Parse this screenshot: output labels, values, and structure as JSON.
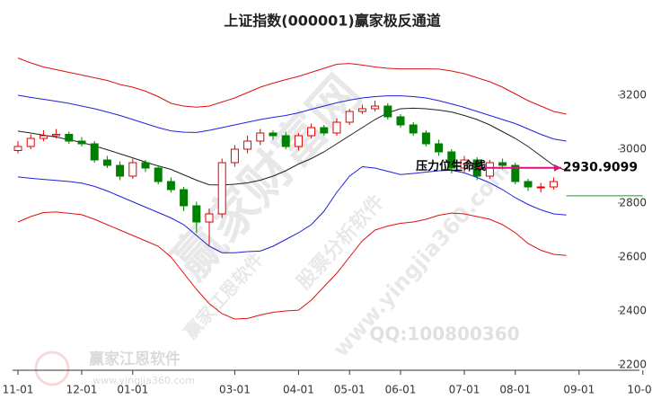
{
  "chart_data": {
    "type": "candlestick",
    "title": "上证指数(000001)赢家极反通道",
    "categories": [
      "11-01",
      null,
      null,
      null,
      null,
      "12-01",
      null,
      null,
      null,
      "01-01",
      null,
      null,
      null,
      null,
      null,
      null,
      null,
      "03-01",
      null,
      null,
      null,
      null,
      "04-01",
      null,
      null,
      null,
      "05-01",
      null,
      null,
      null,
      "06-01",
      null,
      null,
      null,
      null,
      "07-01",
      null,
      null,
      null,
      "08-01",
      null,
      null,
      null,
      null,
      "09-01",
      null,
      null,
      null,
      null,
      "10-01"
    ],
    "ylim": [
      2180,
      3420
    ],
    "yticks": [
      2200,
      2400,
      2600,
      2800,
      3000,
      3200
    ],
    "candles": {
      "up_color": "#e00000",
      "down_color": "#008000",
      "open": [
        2995,
        3010,
        3040,
        3050,
        3055,
        3030,
        3020,
        2960,
        2940,
        2900,
        2950,
        2930,
        2880,
        2850,
        2790,
        2730,
        2760,
        2950,
        3000,
        3030,
        3060,
        3050,
        3010,
        3050,
        3080,
        3060,
        3100,
        3140,
        3150,
        3160,
        3120,
        3090,
        3060,
        3020,
        2990,
        2930,
        2960,
        2900,
        2950,
        2940,
        2880,
        2860,
        2860
      ],
      "high": [
        3030,
        3055,
        3070,
        3075,
        3065,
        3045,
        3030,
        2975,
        2955,
        2965,
        2960,
        2940,
        2895,
        2860,
        2805,
        2780,
        2965,
        3015,
        3050,
        3075,
        3070,
        3065,
        3060,
        3095,
        3090,
        3115,
        3150,
        3165,
        3180,
        3170,
        3130,
        3100,
        3070,
        3035,
        3000,
        2975,
        2970,
        2960,
        2965,
        2950,
        2890,
        2875,
        2895
      ],
      "low": [
        2985,
        3000,
        3030,
        3040,
        3020,
        3010,
        2950,
        2930,
        2885,
        2890,
        2915,
        2870,
        2840,
        2770,
        2690,
        2640,
        2745,
        2935,
        2985,
        3015,
        3035,
        3000,
        2995,
        3040,
        3050,
        3050,
        3090,
        3130,
        3140,
        3110,
        3080,
        3050,
        3010,
        2975,
        2910,
        2915,
        2885,
        2890,
        2925,
        2870,
        2845,
        2840,
        2850
      ],
      "close": [
        3010,
        3040,
        3050,
        3055,
        3030,
        3020,
        2960,
        2940,
        2900,
        2950,
        2930,
        2880,
        2850,
        2790,
        2730,
        2760,
        2950,
        3000,
        3030,
        3060,
        3050,
        3010,
        3050,
        3080,
        3060,
        3100,
        3140,
        3150,
        3160,
        3120,
        3090,
        3060,
        3020,
        2990,
        2930,
        2960,
        2900,
        2950,
        2940,
        2880,
        2860,
        2860,
        2880
      ]
    },
    "series": [
      {
        "color": "#e01010",
        "values": [
          3338,
          3320,
          3305,
          3295,
          3285,
          3275,
          3265,
          3255,
          3240,
          3230,
          3215,
          3195,
          3170,
          3160,
          3156,
          3160,
          3175,
          3190,
          3210,
          3230,
          3245,
          3258,
          3270,
          3285,
          3300,
          3315,
          3318,
          3312,
          3305,
          3300,
          3298,
          3298,
          3298,
          3297,
          3290,
          3280,
          3265,
          3250,
          3230,
          3205,
          3180,
          3160,
          3140,
          3130,
          null,
          null,
          null,
          null,
          null,
          null
        ]
      },
      {
        "color": "#2020e0",
        "values": [
          3200,
          3192,
          3185,
          3178,
          3170,
          3160,
          3150,
          3138,
          3125,
          3110,
          3095,
          3080,
          3068,
          3063,
          3062,
          3070,
          3080,
          3090,
          3100,
          3110,
          3118,
          3125,
          3135,
          3148,
          3160,
          3172,
          3182,
          3190,
          3195,
          3198,
          3198,
          3195,
          3190,
          3180,
          3168,
          3155,
          3140,
          3125,
          3110,
          3095,
          3075,
          3055,
          3038,
          3030,
          null,
          null,
          null,
          null,
          null,
          null
        ]
      },
      {
        "color": "#202020",
        "values": [
          3067,
          3060,
          3052,
          3045,
          3035,
          3025,
          3012,
          2998,
          2983,
          2968,
          2952,
          2938,
          2925,
          2905,
          2885,
          2868,
          2867,
          2870,
          2875,
          2885,
          2900,
          2920,
          2945,
          2965,
          2990,
          3020,
          3050,
          3080,
          3110,
          3135,
          3150,
          3152,
          3150,
          3145,
          3138,
          3125,
          3110,
          3090,
          3065,
          3040,
          3010,
          2975,
          2940,
          2920,
          null,
          null,
          null,
          null,
          null,
          null
        ]
      },
      {
        "color": "#2020e0",
        "values": [
          2897,
          2892,
          2888,
          2884,
          2880,
          2874,
          2862,
          2845,
          2825,
          2805,
          2785,
          2765,
          2745,
          2720,
          2680,
          2640,
          2616,
          2616,
          2620,
          2622,
          2640,
          2665,
          2690,
          2720,
          2770,
          2840,
          2900,
          2935,
          2930,
          2918,
          2906,
          2910,
          2915,
          2920,
          2922,
          2912,
          2895,
          2875,
          2850,
          2820,
          2795,
          2775,
          2760,
          2756,
          null,
          null,
          null,
          null,
          null,
          null
        ]
      },
      {
        "color": "#e01010",
        "values": [
          2730,
          2750,
          2765,
          2767,
          2762,
          2757,
          2740,
          2720,
          2700,
          2680,
          2660,
          2640,
          2600,
          2540,
          2480,
          2427,
          2390,
          2370,
          2372,
          2385,
          2395,
          2400,
          2403,
          2440,
          2490,
          2540,
          2600,
          2660,
          2700,
          2715,
          2725,
          2730,
          2740,
          2755,
          2763,
          2760,
          2750,
          2740,
          2720,
          2690,
          2650,
          2625,
          2610,
          2606,
          null,
          null,
          null,
          null,
          null,
          null
        ]
      },
      {
        "color": "#10a010",
        "values": [
          null,
          null,
          null,
          null,
          null,
          null,
          null,
          null,
          null,
          null,
          null,
          null,
          null,
          null,
          null,
          null,
          null,
          null,
          null,
          null,
          null,
          null,
          null,
          null,
          null,
          null,
          null,
          null,
          null,
          null,
          null,
          null,
          null,
          null,
          null,
          null,
          null,
          null,
          null,
          null,
          null,
          null,
          null,
          2827,
          2827,
          2827,
          2827,
          2827,
          2827,
          2827
        ]
      }
    ],
    "resistance": {
      "label": "压力位生命线",
      "value": 2930.9099,
      "color": "#e0107a"
    },
    "watermarks": [
      "赢家财富网",
      "股票分析软件",
      "www.yingjia360.com",
      "赢家江恩软件",
      "QQ:100800360",
      "赢家江恩软件",
      "www.yingjia360.com"
    ]
  }
}
